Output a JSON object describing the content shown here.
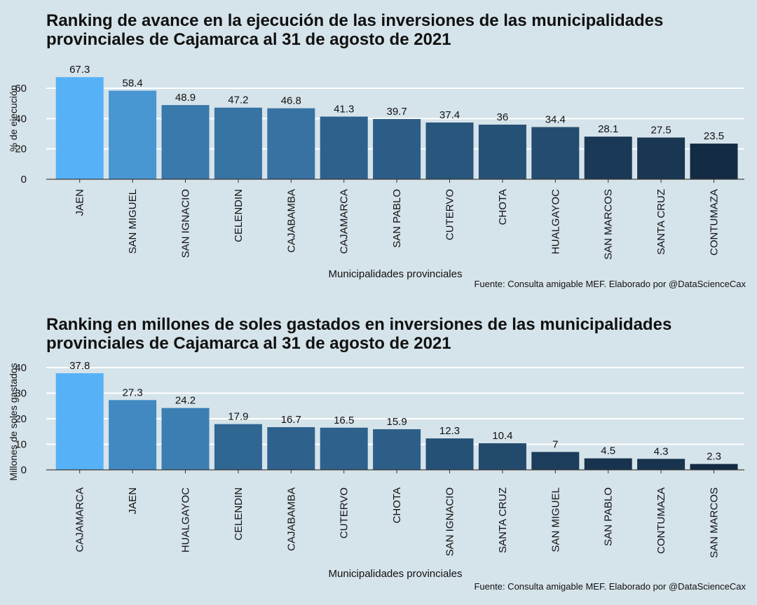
{
  "chart_data": [
    {
      "type": "bar",
      "title_lines": [
        "Ranking de avance en la ejecución de las inversiones de las municipalidades",
        "provinciales de Cajamarca al 31 de agosto de 2021"
      ],
      "xlabel": "Municipalidades provinciales",
      "ylabel": "% de ejecución",
      "ylim": [
        0,
        70
      ],
      "yticks": [
        0,
        20,
        40,
        60
      ],
      "categories": [
        "JAEN",
        "SAN MIGUEL",
        "SAN IGNACIO",
        "CELENDIN",
        "CAJABAMBA",
        "CAJAMARCA",
        "SAN PABLO",
        "CUTERVO",
        "CHOTA",
        "HUALGAYOC",
        "SAN MARCOS",
        "SANTA CRUZ",
        "CONTUMAZA"
      ],
      "values": [
        67.3,
        58.4,
        48.9,
        47.2,
        46.8,
        41.3,
        39.7,
        37.4,
        36,
        34.4,
        28.1,
        27.5,
        23.5
      ],
      "value_labels": [
        "67.3",
        "58.4",
        "48.9",
        "47.2",
        "46.8",
        "41.3",
        "39.7",
        "37.4",
        "36",
        "34.4",
        "28.1",
        "27.5",
        "23.5"
      ],
      "grid": true,
      "caption": "Fuente: Consulta amigable MEF. Elaborado por @DataScienceCax",
      "color_scale": [
        "#132b43",
        "#56b1f7"
      ]
    },
    {
      "type": "bar",
      "title_lines": [
        "Ranking en millones de soles gastados en inversiones de las municipalidades",
        "provinciales de Cajamarca al 31 de agosto de 2021"
      ],
      "xlabel": "Municipalidades provinciales",
      "ylabel": "Millones de soles gastados",
      "ylim": [
        0,
        40
      ],
      "yticks": [
        0,
        10,
        20,
        30,
        40
      ],
      "categories": [
        "CAJAMARCA",
        "JAEN",
        "HUALGAYOC",
        "CELENDIN",
        "CAJABAMBA",
        "CUTERVO",
        "CHOTA",
        "SAN IGNACIO",
        "SANTA CRUZ",
        "SAN MIGUEL",
        "SAN PABLO",
        "CONTUMAZA",
        "SAN MARCOS"
      ],
      "values": [
        37.8,
        27.3,
        24.2,
        17.9,
        16.7,
        16.5,
        15.9,
        12.3,
        10.4,
        7,
        4.5,
        4.3,
        2.3
      ],
      "value_labels": [
        "37.8",
        "27.3",
        "24.2",
        "17.9",
        "16.7",
        "16.5",
        "15.9",
        "12.3",
        "10.4",
        "7",
        "4.5",
        "4.3",
        "2.3"
      ],
      "grid": true,
      "caption": "Fuente: Consulta amigable MEF. Elaborado por @DataScienceCax",
      "color_scale": [
        "#132b43",
        "#56b1f7"
      ]
    }
  ]
}
